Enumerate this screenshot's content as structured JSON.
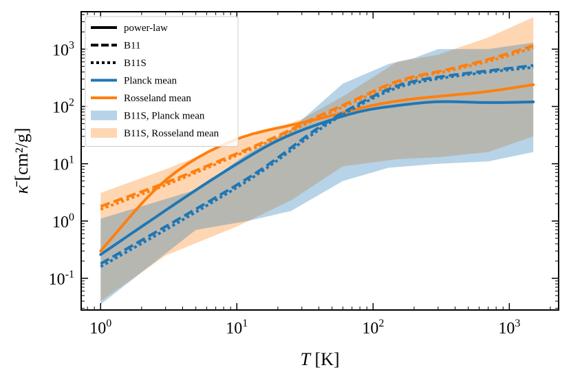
{
  "chart_data": {
    "type": "line",
    "xlabel": {
      "italic": "T",
      "rest": " [K]"
    },
    "ylabel": {
      "italic": "κ̄",
      "rest": " [cm²/g]"
    },
    "xscale": "log",
    "yscale": "log",
    "xlim": [
      0.72,
      2300
    ],
    "ylim": [
      0.028,
      4500
    ],
    "x_ticks": [
      {
        "value": 1,
        "base": "10",
        "exp": "0"
      },
      {
        "value": 10,
        "base": "10",
        "exp": "1"
      },
      {
        "value": 100,
        "base": "10",
        "exp": "2"
      },
      {
        "value": 1000,
        "base": "10",
        "exp": "3"
      }
    ],
    "y_ticks": [
      {
        "value": 0.1,
        "base": "10",
        "exp": "-1"
      },
      {
        "value": 1,
        "base": "10",
        "exp": "0"
      },
      {
        "value": 10,
        "base": "10",
        "exp": "1"
      },
      {
        "value": 100,
        "base": "10",
        "exp": "2"
      },
      {
        "value": 1000,
        "base": "10",
        "exp": "3"
      }
    ],
    "grid": false,
    "legend_position": "top-left",
    "legend": [
      {
        "label": "power-law",
        "kind": "line",
        "style": "solid",
        "color": "#000000"
      },
      {
        "label": "B11",
        "kind": "line",
        "style": "dashed",
        "color": "#000000"
      },
      {
        "label": "B11S",
        "kind": "line",
        "style": "dotted",
        "color": "#000000"
      },
      {
        "label": "Planck mean",
        "kind": "line",
        "style": "solid",
        "color": "#1f77b4"
      },
      {
        "label": "Rosseland mean",
        "kind": "line",
        "style": "solid",
        "color": "#ff7f0e"
      },
      {
        "label": "B11S, Planck mean",
        "kind": "band",
        "color": "#1f77b4"
      },
      {
        "label": "B11S, Rosseland mean",
        "kind": "band",
        "color": "#ff7f0e"
      }
    ],
    "bands": [
      {
        "name": "B11S, Rosseland mean",
        "color": "#ff7f0e",
        "opacity": 0.32,
        "upper": [
          [
            1,
            3.1
          ],
          [
            3,
            8
          ],
          [
            10,
            25
          ],
          [
            30,
            60
          ],
          [
            60,
            150
          ],
          [
            150,
            600
          ],
          [
            300,
            800
          ],
          [
            700,
            1600
          ],
          [
            1500,
            3600
          ]
        ],
        "lower": [
          [
            1,
            0.04
          ],
          [
            3,
            0.25
          ],
          [
            10,
            0.8
          ],
          [
            25,
            2.3
          ],
          [
            60,
            9
          ],
          [
            150,
            12
          ],
          [
            300,
            13
          ],
          [
            700,
            16
          ],
          [
            1500,
            30
          ]
        ]
      },
      {
        "name": "B11S, Planck mean",
        "color": "#1f77b4",
        "opacity": 0.32,
        "upper": [
          [
            1,
            1.1
          ],
          [
            5,
            3.5
          ],
          [
            12,
            15
          ],
          [
            25,
            40
          ],
          [
            60,
            250
          ],
          [
            130,
            550
          ],
          [
            200,
            700
          ],
          [
            300,
            1000
          ],
          [
            700,
            1000
          ],
          [
            1500,
            1300
          ]
        ],
        "lower": [
          [
            1,
            0.035
          ],
          [
            5,
            0.7
          ],
          [
            12,
            1.0
          ],
          [
            25,
            1.5
          ],
          [
            60,
            5
          ],
          [
            130,
            8.5
          ],
          [
            300,
            10
          ],
          [
            700,
            11
          ],
          [
            1500,
            16
          ]
        ]
      }
    ],
    "series": [
      {
        "name": "Rosseland mean",
        "model": "power-law",
        "style": "solid",
        "color": "#ff7f0e",
        "points": [
          [
            1,
            0.3
          ],
          [
            1.5,
            0.9
          ],
          [
            2,
            2.2
          ],
          [
            3,
            5.5
          ],
          [
            5,
            13
          ],
          [
            8,
            22
          ],
          [
            12,
            33
          ],
          [
            20,
            42
          ],
          [
            40,
            60
          ],
          [
            80,
            95
          ],
          [
            160,
            130
          ],
          [
            300,
            150
          ],
          [
            700,
            180
          ],
          [
            1500,
            240
          ]
        ]
      },
      {
        "name": "Planck mean",
        "model": "power-law",
        "style": "solid",
        "color": "#1f77b4",
        "points": [
          [
            1,
            0.26
          ],
          [
            2,
            0.8
          ],
          [
            5,
            3.5
          ],
          [
            10,
            10
          ],
          [
            20,
            27
          ],
          [
            40,
            50
          ],
          [
            80,
            85
          ],
          [
            150,
            105
          ],
          [
            160,
            92
          ],
          [
            170,
            110
          ],
          [
            300,
            125
          ],
          [
            700,
            115
          ],
          [
            1500,
            120
          ]
        ]
      },
      {
        "name": "Rosseland mean",
        "model": "B11",
        "style": "dashed",
        "color": "#ff7f0e",
        "points": [
          [
            1,
            1.8
          ],
          [
            3,
            4.6
          ],
          [
            10,
            15
          ],
          [
            20,
            30
          ],
          [
            40,
            70
          ],
          [
            80,
            140
          ],
          [
            150,
            300
          ],
          [
            300,
            400
          ],
          [
            700,
            650
          ],
          [
            1500,
            1150
          ]
        ]
      },
      {
        "name": "Rosseland mean",
        "model": "B11S",
        "style": "dotted",
        "color": "#ff7f0e",
        "points": [
          [
            1,
            1.6
          ],
          [
            3,
            4.2
          ],
          [
            10,
            14
          ],
          [
            20,
            28
          ],
          [
            40,
            65
          ],
          [
            80,
            130
          ],
          [
            150,
            280
          ],
          [
            300,
            380
          ],
          [
            700,
            600
          ],
          [
            1500,
            1050
          ]
        ]
      },
      {
        "name": "Planck mean",
        "model": "B11",
        "style": "dashed",
        "color": "#1f77b4",
        "points": [
          [
            1,
            0.18
          ],
          [
            3,
            0.8
          ],
          [
            10,
            4.2
          ],
          [
            20,
            12
          ],
          [
            30,
            28
          ],
          [
            60,
            80
          ],
          [
            150,
            250
          ],
          [
            300,
            330
          ],
          [
            700,
            420
          ],
          [
            1500,
            520
          ]
        ]
      },
      {
        "name": "Planck mean",
        "model": "B11S",
        "style": "dotted",
        "color": "#1f77b4",
        "points": [
          [
            1,
            0.16
          ],
          [
            3,
            0.7
          ],
          [
            10,
            3.8
          ],
          [
            20,
            11
          ],
          [
            30,
            25
          ],
          [
            60,
            75
          ],
          [
            150,
            230
          ],
          [
            300,
            310
          ],
          [
            700,
            400
          ],
          [
            1500,
            480
          ]
        ]
      }
    ]
  }
}
